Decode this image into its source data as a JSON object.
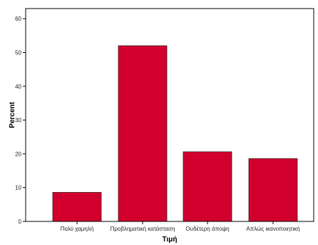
{
  "chart_data": {
    "type": "bar",
    "categories": [
      "Πολύ χαμηλή",
      "Προβληματική κατάσταση",
      "Ουδέτερη άποψη",
      "Απλώς ικανοποιητική"
    ],
    "values": [
      8.6,
      52.0,
      20.6,
      18.6
    ],
    "xlabel": "Τιμή",
    "ylabel": "Percent",
    "ylim": [
      0,
      63
    ],
    "yticks": [
      0,
      10,
      20,
      30,
      40,
      50,
      60
    ],
    "grid": false,
    "legend": "none",
    "colors": {
      "bar_fill": "#d2002e",
      "bar_stroke": "#3a1a1a",
      "axis": "#000000",
      "background": "#ffffff"
    }
  }
}
